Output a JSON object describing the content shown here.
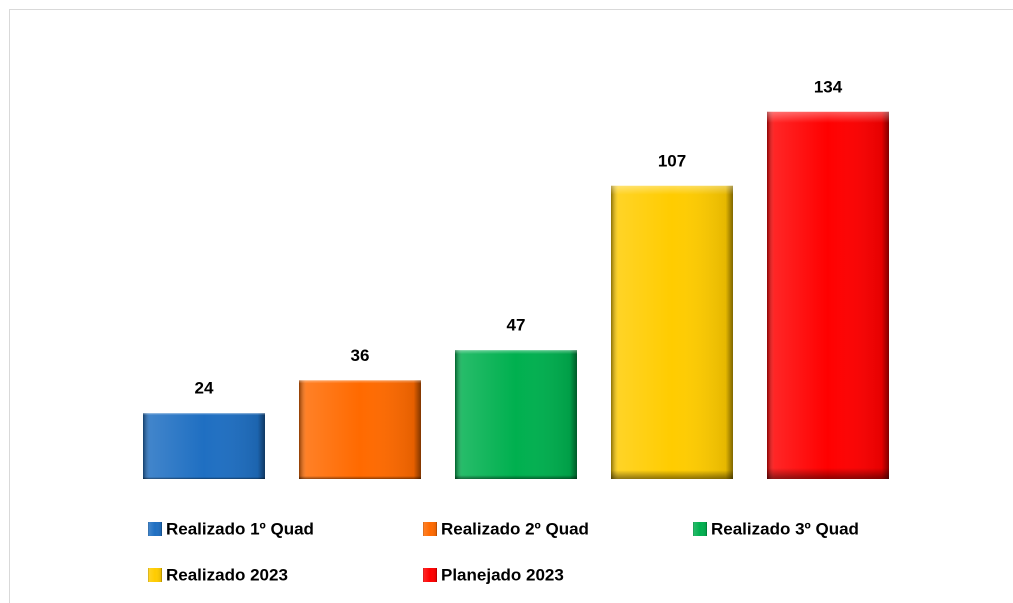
{
  "chart_data": {
    "type": "bar",
    "categories": [
      null
    ],
    "series": [
      {
        "name": "Realizado 1º Quad",
        "color": "#1f6fc2",
        "values": [
          24
        ]
      },
      {
        "name": "Realizado 2º Quad",
        "color": "#ff6a00",
        "values": [
          36
        ]
      },
      {
        "name": "Realizado 3º Quad",
        "color": "#00b04f",
        "values": [
          47
        ]
      },
      {
        "name": "Realizado 2023",
        "color": "#ffcc00",
        "values": [
          107
        ]
      },
      {
        "name": "Planejado 2023",
        "color": "#ff0000",
        "values": [
          134
        ]
      }
    ],
    "ylim": [
      0,
      140
    ],
    "grid": false
  }
}
